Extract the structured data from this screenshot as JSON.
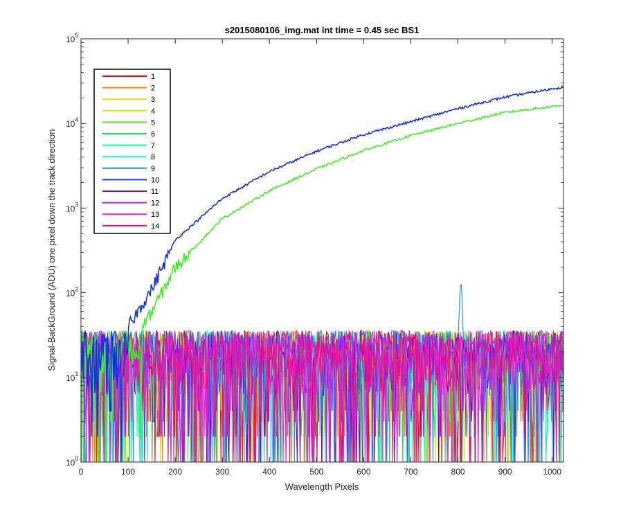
{
  "chart_data": {
    "type": "line",
    "title": "s2015080106_img.mat int time = 0.45 sec   BS1",
    "xlabel": "Wavelength Pixels",
    "ylabel": "Signal-BackGround (ADU) one pixel down the track direction",
    "xlim": [
      0,
      1024
    ],
    "ylim": [
      1,
      100000
    ],
    "yscale": "log",
    "grid": false,
    "legend_position": "top-left",
    "x_ticks": [
      0,
      100,
      200,
      300,
      400,
      500,
      600,
      700,
      800,
      900,
      1000
    ],
    "x_tick_labels": [
      "0",
      "100",
      "200",
      "300",
      "400",
      "500",
      "600",
      "700",
      "800",
      "900",
      "1000"
    ],
    "y_ticks": [
      1,
      10,
      100,
      1000,
      10000,
      100000
    ],
    "y_tick_labels": [
      {
        "base": "10",
        "exp": "0"
      },
      {
        "base": "10",
        "exp": "1"
      },
      {
        "base": "10",
        "exp": "2"
      },
      {
        "base": "10",
        "exp": "3"
      },
      {
        "base": "10",
        "exp": "4"
      },
      {
        "base": "10",
        "exp": "5"
      }
    ],
    "series": [
      {
        "name": "1",
        "color": "#ff0000",
        "kind": "noise"
      },
      {
        "name": "2",
        "color": "#ff7f00",
        "kind": "noise"
      },
      {
        "name": "3",
        "color": "#ffd400",
        "kind": "noise"
      },
      {
        "name": "4",
        "color": "#c8f000",
        "kind": "noise"
      },
      {
        "name": "5",
        "color": "#44ee22",
        "kind": "signal",
        "x": [
          130,
          150,
          200,
          300,
          400,
          500,
          600,
          700,
          800,
          900,
          1024
        ],
        "y": [
          40,
          60,
          200,
          750,
          1600,
          2900,
          4800,
          7200,
          10000,
          13500,
          16500
        ]
      },
      {
        "name": "6",
        "color": "#18e04c",
        "kind": "noise"
      },
      {
        "name": "7",
        "color": "#20eeb0",
        "kind": "noise"
      },
      {
        "name": "8",
        "color": "#20f0f0",
        "kind": "noise"
      },
      {
        "name": "9",
        "color": "#2090e0",
        "kind": "noise-peak",
        "peak_x": 806,
        "peak_y": 125
      },
      {
        "name": "10",
        "color": "#1030f0",
        "kind": "signal",
        "x": [
          100,
          150,
          200,
          300,
          400,
          500,
          600,
          700,
          800,
          900,
          1024
        ],
        "y": [
          40,
          110,
          420,
          1300,
          2700,
          4700,
          7400,
          10500,
          15000,
          20500,
          27000
        ]
      },
      {
        "name": "11",
        "color": "#6010ee",
        "kind": "noise"
      },
      {
        "name": "12",
        "color": "#b020ee",
        "kind": "noise"
      },
      {
        "name": "13",
        "color": "#ee20d8",
        "kind": "noise"
      },
      {
        "name": "14",
        "color": "#f0107a",
        "kind": "noise"
      }
    ]
  }
}
